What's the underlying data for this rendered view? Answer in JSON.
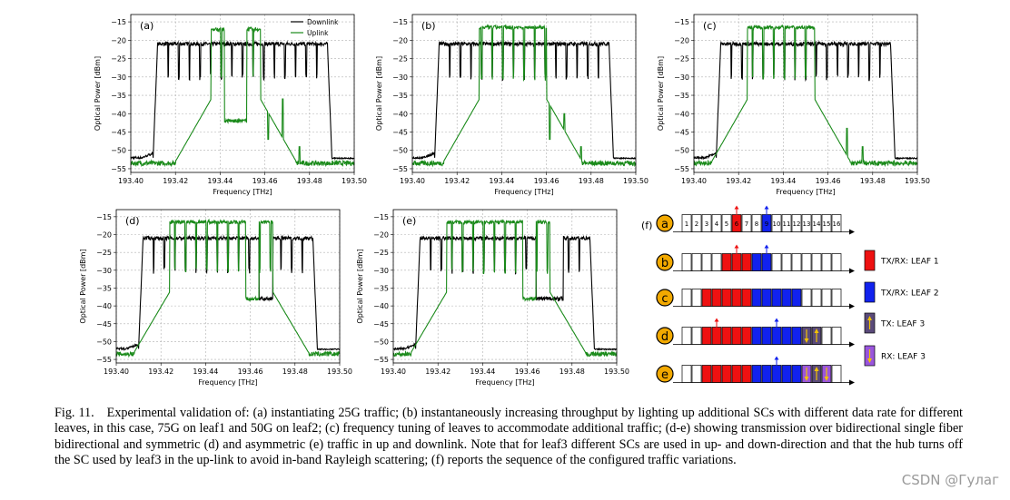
{
  "chart_data": [
    {
      "type": "line",
      "label": "(a)",
      "xlabel": "Frequency [THz]",
      "ylabel": "Optical Power [dBm]",
      "xlim": [
        193.4,
        193.5
      ],
      "ylim": [
        -56,
        -13
      ],
      "xticks": [
        "193.40",
        "193.42",
        "193.44",
        "193.46",
        "193.48",
        "193.50"
      ],
      "yticks": [
        -15,
        -20,
        -25,
        -30,
        -35,
        -40,
        -45,
        -50,
        -55
      ],
      "grid": true,
      "legend": "top-right",
      "series": [
        {
          "name": "Downlink",
          "color": "#000000",
          "baseline": -52.0,
          "band": [
            193.412,
            193.488
          ],
          "level": -21,
          "dip": -31
        },
        {
          "name": "Uplink",
          "color": "#1a8a1a",
          "baseline": -53.5,
          "segments": [
            {
              "from": 193.436,
              "to": 193.442,
              "level": -17
            },
            {
              "from": 193.442,
              "to": 193.452,
              "level": -42
            },
            {
              "from": 193.452,
              "to": 193.458,
              "level": -17
            }
          ],
          "spikes": [
            {
              "x": 193.4615,
              "y": -47
            },
            {
              "x": 193.468,
              "y": -36
            },
            {
              "x": 193.4755,
              "y": -49
            }
          ]
        }
      ]
    },
    {
      "type": "line",
      "label": "(b)",
      "xlabel": "Frequency [THz]",
      "ylabel": "Optical Power [dBm]",
      "xlim": [
        193.4,
        193.5
      ],
      "ylim": [
        -56,
        -13
      ],
      "xticks": [
        "193.40",
        "193.42",
        "193.44",
        "193.46",
        "193.48",
        "193.50"
      ],
      "yticks": [
        -15,
        -20,
        -25,
        -30,
        -35,
        -40,
        -45,
        -50,
        -55
      ],
      "grid": true,
      "series": [
        {
          "name": "Downlink",
          "color": "#000000",
          "baseline": -52.0,
          "band": [
            193.412,
            193.488
          ],
          "level": -21,
          "dip": -31
        },
        {
          "name": "Uplink",
          "color": "#1a8a1a",
          "baseline": -53.5,
          "segments": [
            {
              "from": 193.43,
              "to": 193.46,
              "level": -16.5
            }
          ],
          "spikes": [
            {
              "x": 193.4615,
              "y": -47
            },
            {
              "x": 193.468,
              "y": -40
            },
            {
              "x": 193.4755,
              "y": -49
            }
          ]
        }
      ]
    },
    {
      "type": "line",
      "label": "(c)",
      "xlabel": "Frequency [THz]",
      "ylabel": "Optical Power [dBm]",
      "xlim": [
        193.4,
        193.5
      ],
      "ylim": [
        -56,
        -13
      ],
      "xticks": [
        "193.40",
        "193.42",
        "193.44",
        "193.46",
        "193.48",
        "193.50"
      ],
      "yticks": [
        -15,
        -20,
        -25,
        -30,
        -35,
        -40,
        -45,
        -50,
        -55
      ],
      "grid": true,
      "series": [
        {
          "name": "Downlink",
          "color": "#000000",
          "baseline": -52.0,
          "band": [
            193.412,
            193.488
          ],
          "level": -21,
          "dip": -31
        },
        {
          "name": "Uplink",
          "color": "#1a8a1a",
          "baseline": -53.5,
          "segments": [
            {
              "from": 193.424,
              "to": 193.454,
              "level": -16.5
            }
          ],
          "spikes": [
            {
              "x": 193.4685,
              "y": -44
            },
            {
              "x": 193.4755,
              "y": -49
            }
          ]
        }
      ]
    },
    {
      "type": "line",
      "label": "(d)",
      "xlabel": "Frequency [THz]",
      "ylabel": "Optical Power [dBm]",
      "xlim": [
        193.4,
        193.5
      ],
      "ylim": [
        -56,
        -13
      ],
      "xticks": [
        "193.40",
        "193.42",
        "193.44",
        "193.46",
        "193.48",
        "193.50"
      ],
      "yticks": [
        -15,
        -20,
        -25,
        -30,
        -35,
        -40,
        -45,
        -50,
        -55
      ],
      "grid": true,
      "series": [
        {
          "name": "Downlink",
          "color": "#000000",
          "baseline": -52.0,
          "band": [
            193.412,
            193.488
          ],
          "level": -21,
          "dip": -31,
          "drops": [
            {
              "from": 193.464,
              "to": 193.47,
              "level": -38
            }
          ]
        },
        {
          "name": "Uplink",
          "color": "#1a8a1a",
          "baseline": -53.5,
          "segments": [
            {
              "from": 193.424,
              "to": 193.458,
              "level": -16.5
            },
            {
              "from": 193.458,
              "to": 193.464,
              "level": -38
            },
            {
              "from": 193.464,
              "to": 193.47,
              "level": -16.5
            }
          ],
          "spikes": []
        }
      ]
    },
    {
      "type": "line",
      "label": "(e)",
      "xlabel": "Frequency [THz]",
      "ylabel": "Optical Power [dBm]",
      "xlim": [
        193.4,
        193.5
      ],
      "ylim": [
        -56,
        -13
      ],
      "xticks": [
        "193.40",
        "193.42",
        "193.44",
        "193.46",
        "193.48",
        "193.50"
      ],
      "yticks": [
        -15,
        -20,
        -25,
        -30,
        -35,
        -40,
        -45,
        -50,
        -55
      ],
      "grid": true,
      "series": [
        {
          "name": "Downlink",
          "color": "#000000",
          "baseline": -52.0,
          "band": [
            193.412,
            193.488
          ],
          "level": -21,
          "dip": -31,
          "drops": [
            {
              "from": 193.464,
              "to": 193.476,
              "level": -38
            }
          ]
        },
        {
          "name": "Uplink",
          "color": "#1a8a1a",
          "baseline": -53.5,
          "segments": [
            {
              "from": 193.424,
              "to": 193.458,
              "level": -16.5
            },
            {
              "from": 193.458,
              "to": 193.464,
              "level": -38
            },
            {
              "from": 193.464,
              "to": 193.47,
              "level": -16.5
            }
          ],
          "spikes": []
        }
      ]
    }
  ],
  "panel_f": {
    "label": "(f)",
    "slot_numbers": [
      "1",
      "2",
      "3",
      "4",
      "5",
      "6",
      "7",
      "8",
      "9",
      "10",
      "11",
      "12",
      "13",
      "14",
      "15",
      "16"
    ],
    "rows": [
      {
        "label": "a",
        "slots": [
          "w",
          "w",
          "w",
          "w",
          "w",
          "r",
          "w",
          "w",
          "b",
          "w",
          "w",
          "w",
          "w",
          "w",
          "w",
          "w"
        ],
        "up": [
          5
        ],
        "down": [
          8
        ]
      },
      {
        "label": "b",
        "slots": [
          "w",
          "w",
          "w",
          "w",
          "r",
          "r",
          "r",
          "b",
          "b",
          "w",
          "w",
          "w",
          "w",
          "w",
          "w",
          "w"
        ],
        "up": [
          5
        ],
        "down": [
          8
        ]
      },
      {
        "label": "c",
        "slots": [
          "w",
          "w",
          "r",
          "r",
          "r",
          "r",
          "r",
          "b",
          "b",
          "b",
          "b",
          "b",
          "w",
          "w",
          "w",
          "w"
        ],
        "up": [],
        "down": []
      },
      {
        "label": "d",
        "slots": [
          "w",
          "w",
          "r",
          "r",
          "r",
          "r",
          "r",
          "b",
          "b",
          "b",
          "b",
          "b",
          "d",
          "d",
          "w",
          "w"
        ],
        "up": [
          3
        ],
        "down": [
          9
        ],
        "tx": [
          13
        ],
        "rx": [
          12
        ]
      },
      {
        "label": "e",
        "slots": [
          "w",
          "w",
          "r",
          "r",
          "r",
          "r",
          "r",
          "b",
          "b",
          "b",
          "b",
          "b",
          "p",
          "d",
          "p",
          "w"
        ],
        "up": [],
        "down": [
          9
        ],
        "tx": [
          13
        ],
        "rx": [
          12,
          14
        ]
      }
    ],
    "legend": [
      {
        "key": "r",
        "label": "TX/RX: LEAF 1",
        "color": "#ee1111"
      },
      {
        "key": "b",
        "label": "TX/RX: LEAF 2",
        "color": "#1122ee"
      },
      {
        "key": "d",
        "label": "TX: LEAF 3",
        "color": "#5a4a7a"
      },
      {
        "key": "p",
        "label": "RX: LEAF 3",
        "color": "#9a55dd"
      }
    ],
    "colors": {
      "circle_fill": "#f2a900",
      "up_arrow": "#ee1111",
      "down_arrow": "#1122ee",
      "leaf3_arrow": "#f2c200"
    }
  },
  "caption": {
    "fig_no": "Fig. 11.",
    "text": "Experimental validation of: (a) instantiating 25G traffic; (b) instantaneously increasing throughput by lighting up additional SCs with different data rate for different leaves, in this case, 75G on leaf1 and 50G on leaf2; (c) frequency tuning of leaves to accommodate additional traffic; (d-e) showing transmission over bidirectional single fiber bidirectional and symmetric (d) and asymmetric (e) traffic in up and downlink. Note that for leaf3 different SCs are used in up- and down-direction and that the hub turns off the SC used by leaf3 in the up-link to avoid in-band Rayleigh scattering; (f) reports the sequence of the configured traffic variations."
  },
  "watermark": "CSDN @Гулаг"
}
